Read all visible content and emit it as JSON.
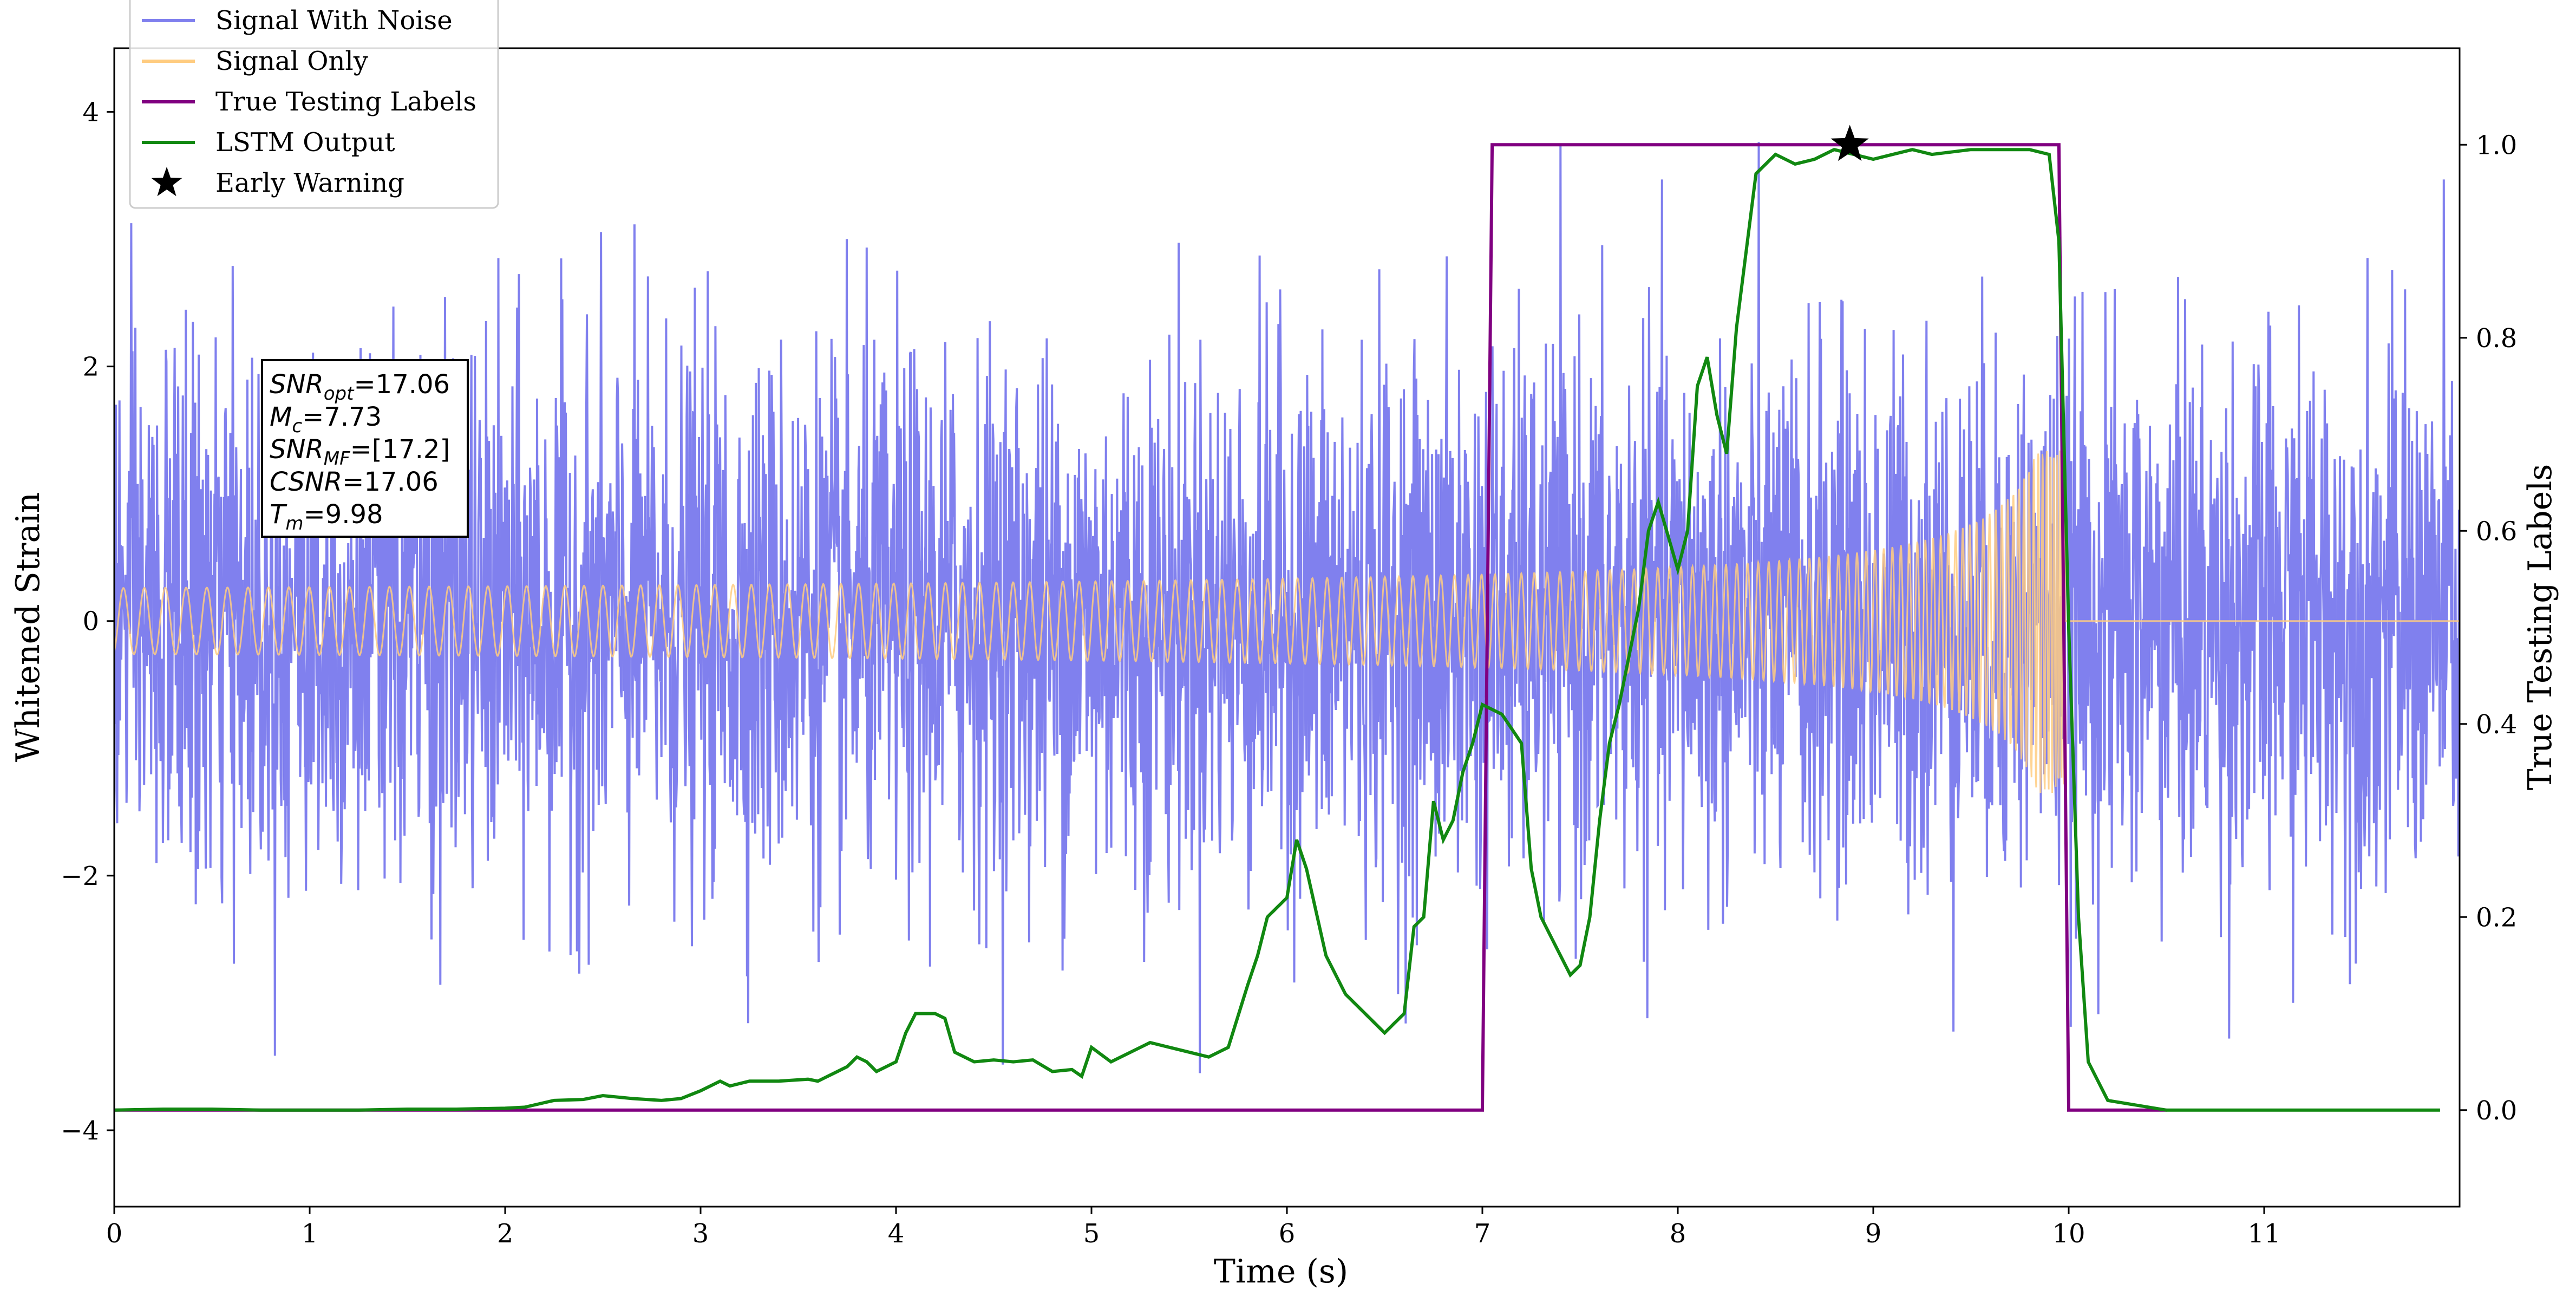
{
  "chart_data": {
    "type": "line",
    "xlabel": "Time (s)",
    "ylabel": "Whitened Strain",
    "y2label": "True Testing Labels",
    "xlim": [
      0,
      12
    ],
    "ylim": [
      -4.6,
      4.5
    ],
    "y2lim": [
      -0.1,
      1.1
    ],
    "x_ticks": [
      0,
      1,
      2,
      3,
      4,
      5,
      6,
      7,
      8,
      9,
      10,
      11
    ],
    "x_tick_labels": [
      "0",
      "1",
      "2",
      "3",
      "4",
      "5",
      "6",
      "7",
      "8",
      "9",
      "10",
      "11"
    ],
    "y_ticks": [
      -4,
      -2,
      0,
      2,
      4
    ],
    "y_tick_labels": [
      "−4",
      "−2",
      "0",
      "2",
      "4"
    ],
    "y2_ticks": [
      0.0,
      0.2,
      0.4,
      0.6,
      0.8,
      1.0
    ],
    "y2_tick_labels": [
      "0.0",
      "0.2",
      "0.4",
      "0.6",
      "0.8",
      "1.0"
    ],
    "grid": false,
    "legend_position": "upper-left",
    "legend": [
      {
        "label": "Signal With Noise",
        "color": "#8080ee",
        "marker": "line"
      },
      {
        "label": "Signal Only",
        "color": "#ffcc80",
        "marker": "line"
      },
      {
        "label": "True Testing Labels",
        "color": "#800080",
        "marker": "line"
      },
      {
        "label": "LSTM Output",
        "color": "#118811",
        "marker": "line"
      },
      {
        "label": "Early Warning",
        "color": "#000000",
        "marker": "star"
      }
    ],
    "annotation": {
      "lines": [
        {
          "base": "SNR",
          "sub": "opt",
          "value": "=17.06"
        },
        {
          "base": "M",
          "sub": "c",
          "value": "=7.73"
        },
        {
          "base": "SNR",
          "sub": "MF",
          "value": "=[17.2]"
        },
        {
          "base": "CSNR",
          "sub": "",
          "value": "=17.06"
        },
        {
          "base": "T",
          "sub": "m",
          "value": "=9.98"
        }
      ]
    },
    "series": [
      {
        "name": "Signal With Noise",
        "axis": "left",
        "color": "#8080ee",
        "kind": "noise",
        "x_range": [
          0,
          12
        ],
        "noise_std": 1.05,
        "min": -4.2,
        "max": 4.1
      },
      {
        "name": "Signal Only",
        "axis": "left",
        "color": "#ffcc80",
        "kind": "chirp",
        "x_range": [
          0,
          12
        ],
        "merger_time": 9.98,
        "amplitude_start": 0.05,
        "amplitude_peak": 1.35
      },
      {
        "name": "True Testing Labels",
        "axis": "right",
        "color": "#800080",
        "x": [
          0.0,
          7.0,
          7.05,
          9.95,
          10.0,
          10.5
        ],
        "y": [
          0.0,
          0.0,
          1.0,
          1.0,
          0.0,
          0.0
        ]
      },
      {
        "name": "LSTM Output",
        "axis": "right",
        "color": "#118811",
        "x": [
          0.0,
          0.25,
          0.5,
          0.75,
          1.0,
          1.25,
          1.5,
          1.75,
          2.0,
          2.1,
          2.25,
          2.4,
          2.5,
          2.65,
          2.8,
          2.9,
          3.0,
          3.1,
          3.15,
          3.25,
          3.4,
          3.55,
          3.6,
          3.65,
          3.7,
          3.75,
          3.8,
          3.85,
          3.9,
          4.0,
          4.05,
          4.1,
          4.2,
          4.25,
          4.3,
          4.35,
          4.4,
          4.5,
          4.6,
          4.7,
          4.8,
          4.9,
          4.95,
          5.0,
          5.1,
          5.2,
          5.3,
          5.4,
          5.5,
          5.6,
          5.7,
          5.8,
          5.85,
          5.9,
          5.95,
          6.0,
          6.05,
          6.1,
          6.2,
          6.3,
          6.4,
          6.5,
          6.55,
          6.6,
          6.65,
          6.7,
          6.75,
          6.8,
          6.85,
          6.9,
          6.95,
          7.0,
          7.1,
          7.2,
          7.25,
          7.3,
          7.4,
          7.45,
          7.5,
          7.55,
          7.6,
          7.65,
          7.7,
          7.8,
          7.85,
          7.9,
          8.0,
          8.05,
          8.1,
          8.15,
          8.2,
          8.25,
          8.3,
          8.4,
          8.5,
          8.6,
          8.7,
          8.8,
          8.9,
          9.0,
          9.1,
          9.2,
          9.3,
          9.5,
          9.7,
          9.8,
          9.9,
          9.95,
          10.0,
          10.05,
          10.1,
          10.2,
          10.5,
          11.0,
          11.5,
          11.9
        ],
        "y": [
          0.0,
          0.001,
          0.001,
          0.0,
          0.0,
          0.0,
          0.001,
          0.001,
          0.002,
          0.003,
          0.01,
          0.011,
          0.015,
          0.012,
          0.01,
          0.012,
          0.02,
          0.03,
          0.025,
          0.03,
          0.03,
          0.032,
          0.03,
          0.035,
          0.04,
          0.045,
          0.055,
          0.05,
          0.04,
          0.05,
          0.08,
          0.1,
          0.1,
          0.095,
          0.06,
          0.055,
          0.05,
          0.052,
          0.05,
          0.052,
          0.04,
          0.042,
          0.035,
          0.065,
          0.05,
          0.06,
          0.07,
          0.065,
          0.06,
          0.055,
          0.065,
          0.13,
          0.16,
          0.2,
          0.21,
          0.22,
          0.28,
          0.25,
          0.16,
          0.12,
          0.1,
          0.08,
          0.09,
          0.1,
          0.19,
          0.2,
          0.32,
          0.28,
          0.3,
          0.35,
          0.38,
          0.42,
          0.41,
          0.38,
          0.25,
          0.2,
          0.16,
          0.14,
          0.15,
          0.2,
          0.3,
          0.38,
          0.42,
          0.52,
          0.6,
          0.63,
          0.56,
          0.6,
          0.75,
          0.78,
          0.72,
          0.68,
          0.81,
          0.97,
          0.99,
          0.98,
          0.985,
          0.995,
          0.99,
          0.985,
          0.99,
          0.995,
          0.99,
          0.995,
          0.995,
          0.995,
          0.99,
          0.9,
          0.5,
          0.2,
          0.05,
          0.01,
          0.0,
          0.0,
          0.0,
          0.0
        ]
      }
    ],
    "early_warning": {
      "x": 8.88,
      "y": 1.0,
      "axis": "right"
    }
  }
}
